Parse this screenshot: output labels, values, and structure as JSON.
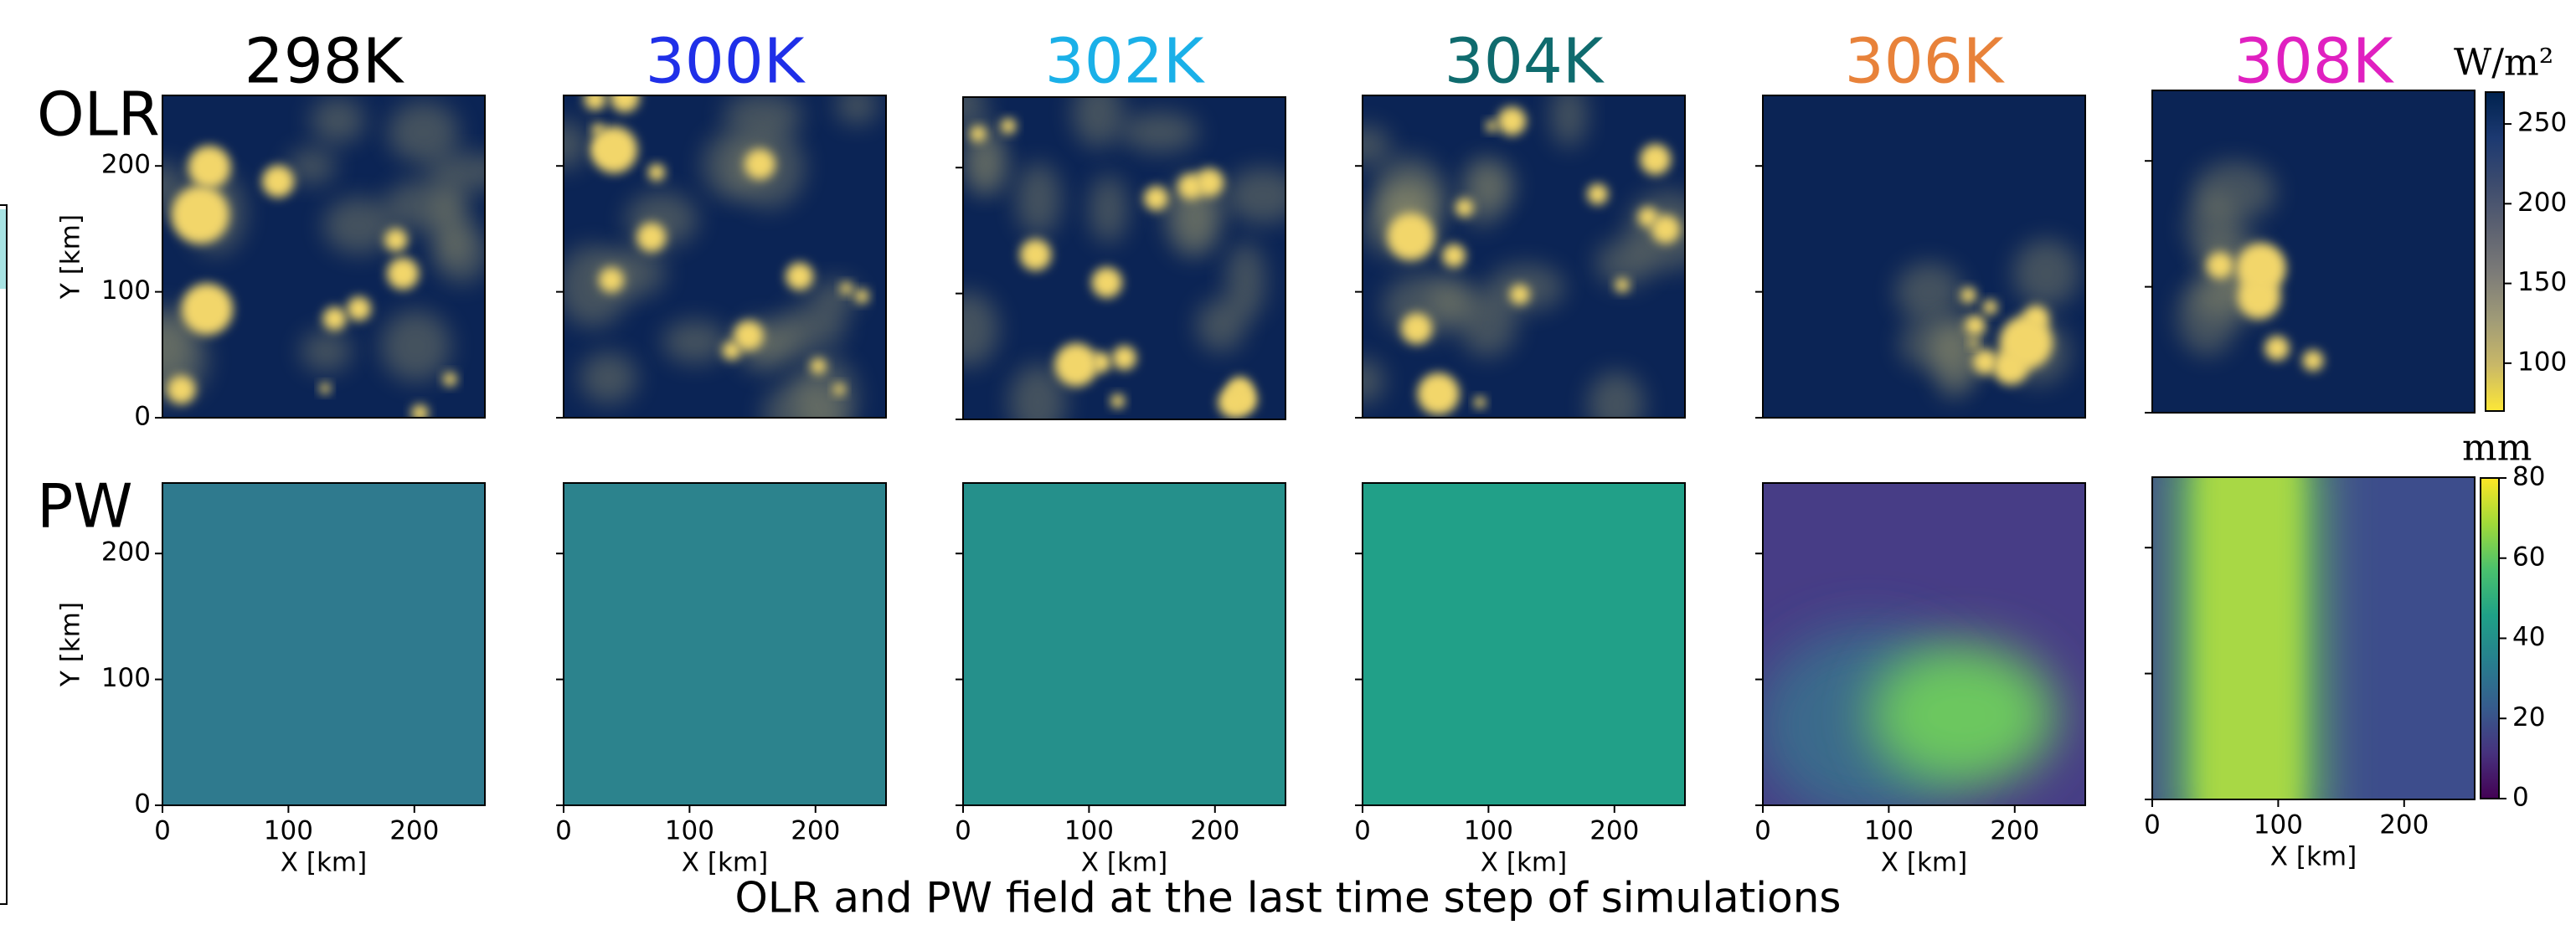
{
  "title": "OLR and PW field at the last time step of simulations",
  "columns": [
    {
      "label": "298K",
      "color": "#000000"
    },
    {
      "label": "300K",
      "color": "#1f2fe8"
    },
    {
      "label": "302K",
      "color": "#1ab0e8"
    },
    {
      "label": "304K",
      "color": "#0f6b6e"
    },
    {
      "label": "306K",
      "color": "#e8823a"
    },
    {
      "label": "308K",
      "color": "#e020c0"
    }
  ],
  "rows": [
    "OLR",
    "PW"
  ],
  "xaxis": {
    "label": "X [km]",
    "lim": [
      0,
      256
    ],
    "ticks": [
      0,
      100,
      200
    ]
  },
  "yaxis": {
    "label": "Y [km]",
    "lim": [
      0,
      256
    ],
    "ticks": [
      0,
      100,
      200
    ]
  },
  "colorbars": [
    {
      "unit": "W/m²",
      "lim": [
        70,
        270
      ],
      "ticks": [
        100,
        150,
        200,
        250
      ],
      "colors": [
        "#fde737",
        "#c9b867",
        "#a09b77",
        "#7d7c78",
        "#5d6271",
        "#3c4b6e",
        "#1c3971",
        "#00224e"
      ]
    },
    {
      "unit": "mm",
      "lim": [
        0,
        80
      ],
      "ticks": [
        0,
        20,
        40,
        60,
        80
      ],
      "colors": [
        "#440154",
        "#46327e",
        "#365c8d",
        "#277f8e",
        "#1fa187",
        "#4ac16d",
        "#a0da39",
        "#fde725"
      ]
    }
  ]
}
